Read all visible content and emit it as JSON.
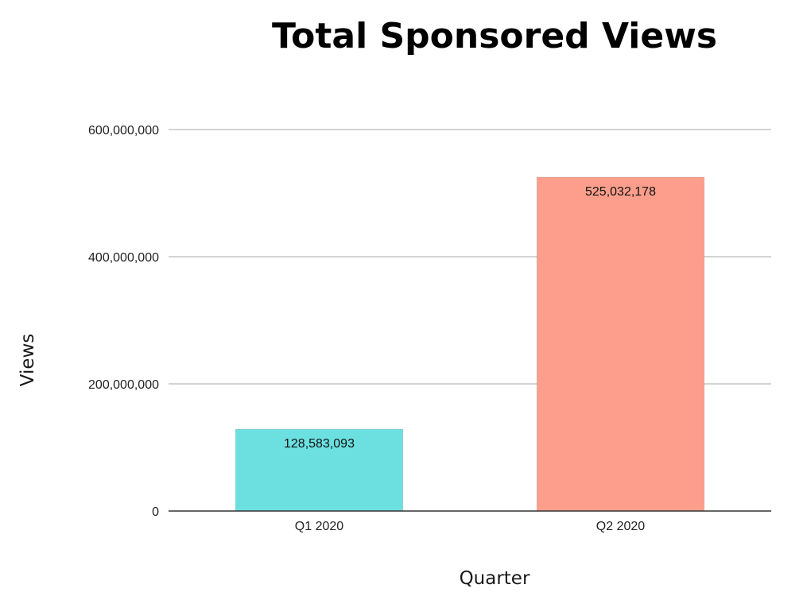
{
  "chart_data": {
    "type": "bar",
    "title": "Total Sponsored Views",
    "xlabel": "Quarter",
    "ylabel": "Views",
    "categories": [
      "Q1 2020",
      "Q2 2020"
    ],
    "values": [
      128583093,
      525032178
    ],
    "data_labels": [
      "128,583,093",
      "525,032,178"
    ],
    "colors": [
      "#6ce0e0",
      "#fc9e8b"
    ],
    "ylim": [
      0,
      600000000
    ],
    "yticks": [
      0,
      200000000,
      400000000,
      600000000
    ],
    "ytick_labels": [
      "0",
      "200,000,000",
      "400,000,000",
      "600,000,000"
    ],
    "grid": true,
    "legend": "none"
  }
}
